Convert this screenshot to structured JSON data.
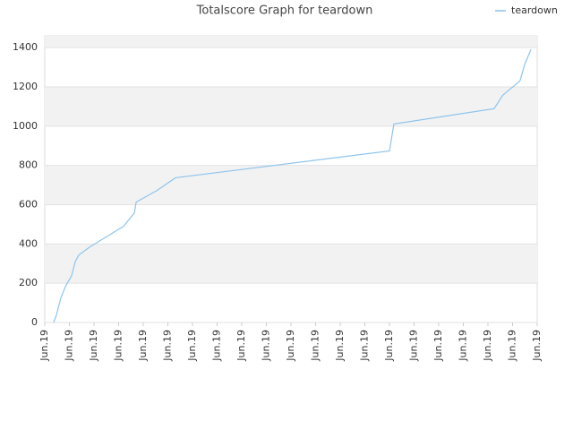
{
  "chart_data": {
    "type": "line",
    "title": "Totalscore Graph for teardown",
    "x": [
      0.36,
      0.47,
      0.65,
      0.84,
      0.91,
      1.09,
      1.24,
      1.38,
      1.82,
      3.2,
      3.64,
      3.71,
      4.55,
      5.31,
      14.0,
      14.18,
      18.25,
      18.6,
      18.9,
      19.3,
      19.5,
      19.75
    ],
    "series": [
      {
        "name": "teardown",
        "color": "#8ec4ec",
        "values": [
          0,
          37,
          124,
          183,
          200,
          238,
          311,
          343,
          384,
          490,
          558,
          613,
          672,
          737,
          874,
          1011,
          1089,
          1157,
          1189,
          1230,
          1317,
          1391
        ]
      }
    ],
    "xlim": [
      0,
      20
    ],
    "ylim": [
      0,
      1460
    ],
    "xticks": [
      {
        "value": 0,
        "label": "Jun.19"
      },
      {
        "value": 1,
        "label": "Jun.19"
      },
      {
        "value": 2,
        "label": "Jun.19"
      },
      {
        "value": 3,
        "label": "Jun.19"
      },
      {
        "value": 4,
        "label": "Jun.19"
      },
      {
        "value": 5,
        "label": "Jun.19"
      },
      {
        "value": 6,
        "label": "Jun.19"
      },
      {
        "value": 7,
        "label": "Jun.19"
      },
      {
        "value": 8,
        "label": "Jun.19"
      },
      {
        "value": 9,
        "label": "Jun.19"
      },
      {
        "value": 10,
        "label": "Jun.19"
      },
      {
        "value": 11,
        "label": "Jun.19"
      },
      {
        "value": 12,
        "label": "Jun.19"
      },
      {
        "value": 13,
        "label": "Jun.19"
      },
      {
        "value": 14,
        "label": "Jun.19"
      },
      {
        "value": 15,
        "label": "Jun.19"
      },
      {
        "value": 16,
        "label": "Jun.19"
      },
      {
        "value": 17,
        "label": "Jun.19"
      },
      {
        "value": 18,
        "label": "Jun.19"
      },
      {
        "value": 19,
        "label": "Jun.19"
      },
      {
        "value": 20,
        "label": "Jun.19"
      }
    ],
    "yticks": [
      0,
      200,
      400,
      600,
      800,
      1000,
      1200,
      1400
    ],
    "grid": true,
    "legend": "top-right"
  }
}
